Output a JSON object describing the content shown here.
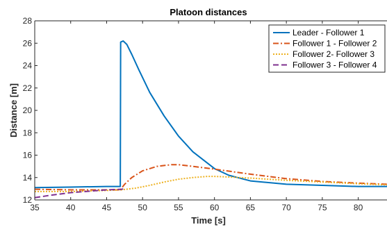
{
  "chart_data": {
    "type": "line",
    "title": "Platoon distances",
    "xlabel": "Time [s]",
    "ylabel": "Distance [m]",
    "xlim": [
      35,
      84
    ],
    "ylim": [
      12,
      28
    ],
    "xticks": [
      35,
      40,
      45,
      50,
      55,
      60,
      65,
      70,
      75,
      80
    ],
    "yticks": [
      12,
      14,
      16,
      18,
      20,
      22,
      24,
      26,
      28
    ],
    "grid": false,
    "legend_position": "top-right",
    "series": [
      {
        "name": "Leader - Follower 1",
        "color": "#0072BD",
        "style": "solid",
        "x": [
          35,
          40,
          45,
          46.9,
          46.95,
          47.3,
          47.8,
          48.5,
          49.5,
          51,
          53,
          55,
          57,
          60,
          62,
          65,
          70,
          75,
          80,
          84
        ],
        "y": [
          13.1,
          13.15,
          13.2,
          13.2,
          26.1,
          26.2,
          25.9,
          25.0,
          23.6,
          21.6,
          19.5,
          17.7,
          16.3,
          14.8,
          14.2,
          13.7,
          13.4,
          13.3,
          13.2,
          13.2
        ]
      },
      {
        "name": "Follower 1 - Follower 2",
        "color": "#D95319",
        "style": "dashdot",
        "x": [
          35,
          40,
          45,
          46.9,
          47.5,
          48.5,
          50,
          52,
          54,
          55,
          57,
          60,
          65,
          70,
          75,
          80,
          84
        ],
        "y": [
          12.95,
          12.9,
          12.9,
          12.9,
          13.4,
          14.0,
          14.6,
          15.0,
          15.15,
          15.15,
          15.0,
          14.75,
          14.3,
          13.9,
          13.65,
          13.5,
          13.4
        ]
      },
      {
        "name": "Follower 2- Follower 3",
        "color": "#EDB120",
        "style": "dotted",
        "x": [
          35,
          40,
          45,
          47,
          49,
          51,
          53,
          55,
          57,
          59,
          60,
          62,
          65,
          70,
          75,
          80,
          84
        ],
        "y": [
          12.75,
          12.75,
          12.85,
          12.9,
          13.05,
          13.3,
          13.6,
          13.85,
          14.0,
          14.1,
          14.1,
          14.05,
          13.95,
          13.75,
          13.6,
          13.45,
          13.35
        ]
      },
      {
        "name": "Follower 3 - Follower 4",
        "color": "#7E2F8E",
        "style": "dashed",
        "x": [
          35,
          37,
          40,
          43,
          45,
          47,
          47.5
        ],
        "y": [
          12.2,
          12.4,
          12.65,
          12.8,
          12.9,
          12.95,
          13.0
        ]
      }
    ]
  }
}
